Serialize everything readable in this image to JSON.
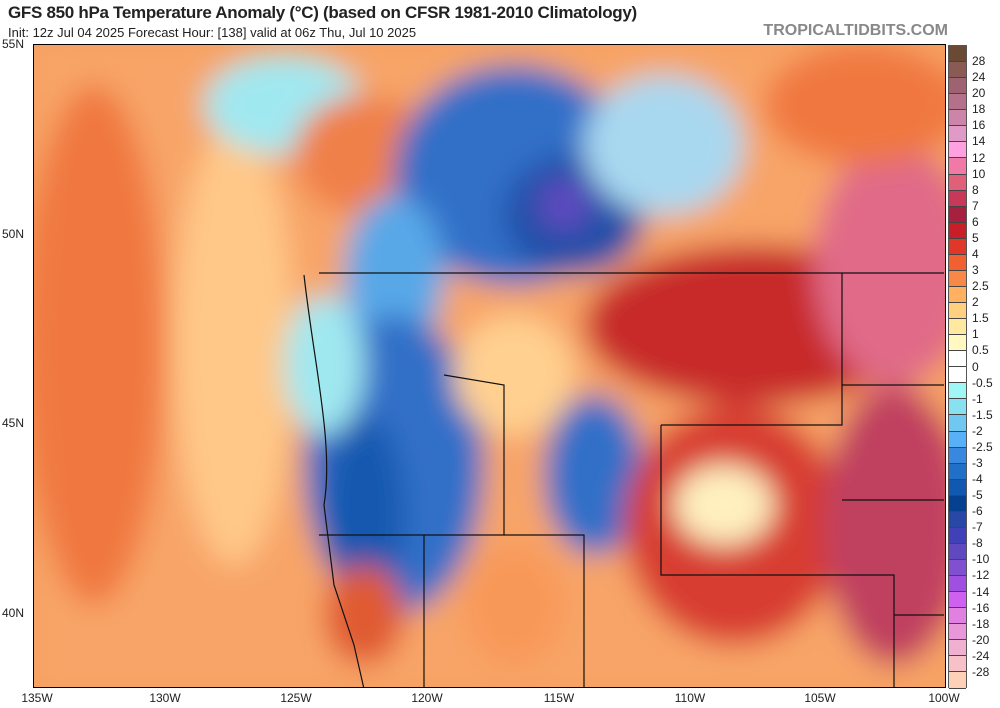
{
  "header": {
    "title": "GFS 850 hPa Temperature Anomaly (°C) (based on CFSR 1981-2010 Climatology)",
    "subtitle": "Init: 12z Jul 04 2025   Forecast Hour: [138]   valid at 06z Thu, Jul 10 2025",
    "brand": "TROPICALTIDBITS.COM"
  },
  "map": {
    "lat_labels": [
      "55N",
      "50N",
      "45N",
      "40N"
    ],
    "lon_labels": [
      "135W",
      "130W",
      "125W",
      "120W",
      "115W",
      "110W",
      "105W",
      "100W"
    ]
  },
  "colorbar": {
    "labels": [
      "28",
      "24",
      "20",
      "18",
      "16",
      "14",
      "12",
      "10",
      "8",
      "7",
      "6",
      "5",
      "4",
      "3",
      "2.5",
      "2",
      "1.5",
      "1",
      "0.5",
      "0",
      "-0.5",
      "-1",
      "-1.5",
      "-2",
      "-2.5",
      "-3",
      "-4",
      "-5",
      "-6",
      "-7",
      "-8",
      "-10",
      "-12",
      "-14",
      "-16",
      "-18",
      "-20",
      "-24",
      "-28"
    ],
    "colors": [
      "#6b4a35",
      "#8a5a55",
      "#9e6270",
      "#b5708a",
      "#cc85a8",
      "#e09ac8",
      "#ffa0e0",
      "#f07aa5",
      "#e0607a",
      "#c83858",
      "#a82040",
      "#c81e28",
      "#e03828",
      "#f06030",
      "#f88848",
      "#ffb060",
      "#ffd080",
      "#ffe8a0",
      "#fff8c0",
      "#ffffff",
      "#ffffff",
      "#a0f5f5",
      "#88e0f0",
      "#70c8f0",
      "#58b0f8",
      "#3888e0",
      "#2070c8",
      "#1058b0",
      "#064090",
      "#2848a8",
      "#4040b8",
      "#6048c0",
      "#8050d0",
      "#a050e0",
      "#d060f0",
      "#e080e0",
      "#e898d8",
      "#f0b0d0",
      "#f8c0c8",
      "#ffd0b8"
    ]
  }
}
